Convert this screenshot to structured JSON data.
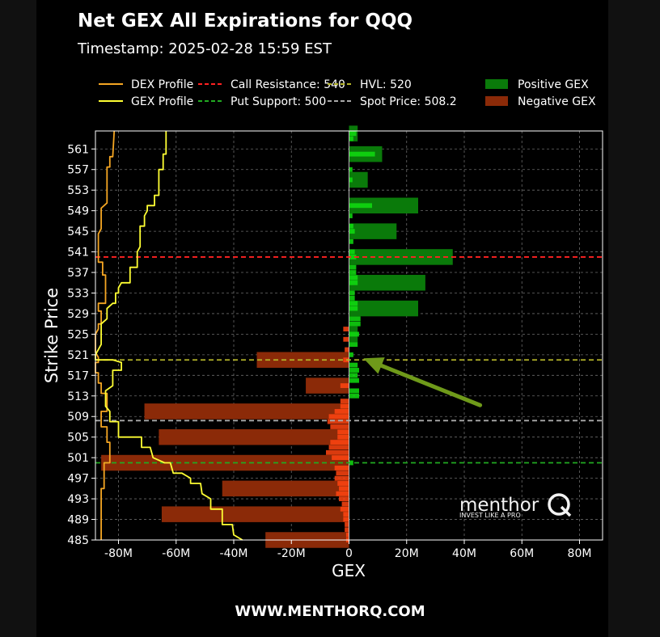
{
  "header": {
    "title": "Net GEX All Expirations for QQQ",
    "timestamp": "Timestamp: 2025-02-28 15:59 EST"
  },
  "legend": [
    {
      "label": "DEX Profile",
      "kind": "line",
      "color": "#f5a623",
      "dash": false
    },
    {
      "label": "GEX Profile",
      "kind": "line",
      "color": "#ffff33",
      "dash": false
    },
    {
      "label": "Call Resistance: 540",
      "kind": "line",
      "color": "#ff2222",
      "dash": true
    },
    {
      "label": "Put Support: 500",
      "kind": "line",
      "color": "#22aa22",
      "dash": true
    },
    {
      "label": "HVL: 520",
      "kind": "line",
      "color": "#b5b52a",
      "dash": true
    },
    {
      "label": "Spot Price: 508.2",
      "kind": "line",
      "color": "#aaaaaa",
      "dash": true
    },
    {
      "label": "Positive GEX",
      "kind": "patch",
      "color": "#0a7a0a"
    },
    {
      "label": "Negative GEX",
      "kind": "patch",
      "color": "#8b2a08"
    }
  ],
  "watermark": {
    "brand": "menthor",
    "tagline": "INVEST LIKE A PRO"
  },
  "footer": "WWW.MENTHORQ.COM",
  "chart_data": {
    "type": "bar",
    "orientation": "horizontal",
    "xlabel": "GEX",
    "ylabel": "Strike Price",
    "xlim": [
      -88,
      88
    ],
    "ylim": [
      485,
      564.5
    ],
    "x_unit": "M",
    "x_ticks": [
      -80,
      -60,
      -40,
      -20,
      0,
      20,
      40,
      60,
      80
    ],
    "x_tick_labels": [
      "-80M",
      "-60M",
      "-40M",
      "-20M",
      "0",
      "20M",
      "40M",
      "60M",
      "80M"
    ],
    "y_ticks": [
      485,
      489,
      493,
      497,
      501,
      505,
      509,
      513,
      517,
      521,
      525,
      529,
      533,
      537,
      541,
      545,
      549,
      553,
      557,
      561
    ],
    "grid": true,
    "colors": {
      "positive": "#0a7a0a",
      "negative": "#8b2a08",
      "bright_positive": "#11dd11",
      "bright_negative": "#ff4411",
      "arrow": "#6f9a1a"
    },
    "levels": {
      "call_resistance": 540,
      "put_support": 500,
      "hvl": 520,
      "spot": 508.2
    },
    "bars": [
      {
        "strike": 564,
        "value": 3
      },
      {
        "strike": 560,
        "value": 11.5
      },
      {
        "strike": 555,
        "value": 6.5
      },
      {
        "strike": 550,
        "value": 24
      },
      {
        "strike": 545,
        "value": 16.5
      },
      {
        "strike": 540,
        "value": 36
      },
      {
        "strike": 535,
        "value": 26.5
      },
      {
        "strike": 530,
        "value": 24
      },
      {
        "strike": 525,
        "value": 3
      },
      {
        "strike": 520,
        "value": -32
      },
      {
        "strike": 515,
        "value": -15
      },
      {
        "strike": 510,
        "value": -71
      },
      {
        "strike": 505,
        "value": -66
      },
      {
        "strike": 500,
        "value": -86
      },
      {
        "strike": 495,
        "value": -44
      },
      {
        "strike": 490,
        "value": -65
      },
      {
        "strike": 485,
        "value": -29
      }
    ],
    "net_gex_bright": [
      {
        "strike": 564,
        "value": 2.5
      },
      {
        "strike": 563,
        "value": 1.5
      },
      {
        "strike": 560,
        "value": 9
      },
      {
        "strike": 557,
        "value": 1.2
      },
      {
        "strike": 555,
        "value": 1.2
      },
      {
        "strike": 550,
        "value": 8
      },
      {
        "strike": 548,
        "value": 1.2
      },
      {
        "strike": 546,
        "value": 1.5
      },
      {
        "strike": 545,
        "value": 2
      },
      {
        "strike": 543,
        "value": 1.5
      },
      {
        "strike": 541,
        "value": 2
      },
      {
        "strike": 540,
        "value": 2.5
      },
      {
        "strike": 538,
        "value": 2.5
      },
      {
        "strike": 537,
        "value": 2.5
      },
      {
        "strike": 536,
        "value": 3
      },
      {
        "strike": 535,
        "value": 3
      },
      {
        "strike": 533,
        "value": 2
      },
      {
        "strike": 532,
        "value": 2
      },
      {
        "strike": 531,
        "value": 3
      },
      {
        "strike": 530,
        "value": 3
      },
      {
        "strike": 528,
        "value": 4
      },
      {
        "strike": 527,
        "value": 4
      },
      {
        "strike": 526,
        "value": -2
      },
      {
        "strike": 525,
        "value": 3.5
      },
      {
        "strike": 524,
        "value": -2
      },
      {
        "strike": 523,
        "value": 3
      },
      {
        "strike": 522,
        "value": -1.5
      },
      {
        "strike": 521,
        "value": 1.5
      },
      {
        "strike": 520,
        "value": -2
      },
      {
        "strike": 519,
        "value": 3
      },
      {
        "strike": 518,
        "value": 3.5
      },
      {
        "strike": 517,
        "value": 3
      },
      {
        "strike": 516,
        "value": 3.5
      },
      {
        "strike": 515,
        "value": -3
      },
      {
        "strike": 514,
        "value": 3.5
      },
      {
        "strike": 513,
        "value": 3.5
      },
      {
        "strike": 512,
        "value": -3
      },
      {
        "strike": 511,
        "value": -3
      },
      {
        "strike": 510,
        "value": -5
      },
      {
        "strike": 509,
        "value": -7
      },
      {
        "strike": 508,
        "value": -7.5
      },
      {
        "strike": 507,
        "value": -6.5
      },
      {
        "strike": 506,
        "value": -4
      },
      {
        "strike": 505,
        "value": -4
      },
      {
        "strike": 504,
        "value": -6.5
      },
      {
        "strike": 503,
        "value": -7
      },
      {
        "strike": 502,
        "value": -8
      },
      {
        "strike": 501,
        "value": -6
      },
      {
        "strike": 500,
        "value": 1.5
      },
      {
        "strike": 499,
        "value": -5
      },
      {
        "strike": 498,
        "value": -4.5
      },
      {
        "strike": 497,
        "value": -5
      },
      {
        "strike": 496,
        "value": -4
      },
      {
        "strike": 495,
        "value": -3.5
      },
      {
        "strike": 494,
        "value": -4.5
      },
      {
        "strike": 493,
        "value": -3.5
      },
      {
        "strike": 492,
        "value": -2.5
      },
      {
        "strike": 491,
        "value": -3
      },
      {
        "strike": 490,
        "value": -2
      },
      {
        "strike": 489,
        "value": -2
      },
      {
        "strike": 488,
        "value": -1.5
      },
      {
        "strike": 487,
        "value": -1.5
      },
      {
        "strike": 486,
        "value": -1
      },
      {
        "strike": 485,
        "value": -1
      }
    ],
    "series": [
      {
        "name": "DEX Profile",
        "color": "#f5a623",
        "points": [
          [
            -81.5,
            564.5
          ],
          [
            -82,
            559.5
          ],
          [
            -83,
            559.5
          ],
          [
            -83,
            557.5
          ],
          [
            -84,
            557.5
          ],
          [
            -84,
            550.5
          ],
          [
            -86,
            549.5
          ],
          [
            -86,
            545.5
          ],
          [
            -87,
            544.5
          ],
          [
            -87,
            539
          ],
          [
            -85.5,
            539
          ],
          [
            -85.5,
            536.5
          ],
          [
            -84.5,
            536.5
          ],
          [
            -84.5,
            531
          ],
          [
            -87,
            531
          ],
          [
            -87,
            529.5
          ],
          [
            -86,
            529.5
          ],
          [
            -86,
            527
          ],
          [
            -87,
            527
          ],
          [
            -87,
            526
          ],
          [
            -88,
            525
          ],
          [
            -88,
            521.5
          ],
          [
            -87,
            520.5
          ],
          [
            -87,
            519.5
          ],
          [
            -88,
            519.5
          ],
          [
            -88,
            517.5
          ],
          [
            -87,
            517.5
          ],
          [
            -87,
            515.5
          ],
          [
            -86,
            515.5
          ],
          [
            -86,
            513.5
          ],
          [
            -84,
            513.5
          ],
          [
            -84,
            510
          ],
          [
            -86,
            510
          ],
          [
            -86,
            507
          ],
          [
            -84,
            507
          ],
          [
            -84,
            504
          ],
          [
            -83,
            504
          ],
          [
            -83,
            500
          ],
          [
            -85,
            500
          ],
          [
            -85,
            495
          ],
          [
            -86,
            495
          ],
          [
            -86,
            485
          ]
        ]
      },
      {
        "name": "GEX Profile",
        "color": "#ffff33",
        "points": [
          [
            -63.5,
            564.5
          ],
          [
            -63.5,
            560
          ],
          [
            -64.5,
            560
          ],
          [
            -64.5,
            557
          ],
          [
            -66,
            557
          ],
          [
            -66,
            552
          ],
          [
            -67.5,
            552
          ],
          [
            -67.5,
            550
          ],
          [
            -70,
            550
          ],
          [
            -70,
            549
          ],
          [
            -71,
            548
          ],
          [
            -71,
            546
          ],
          [
            -72.5,
            546
          ],
          [
            -72.5,
            542
          ],
          [
            -73.5,
            541
          ],
          [
            -73.5,
            538
          ],
          [
            -76,
            538
          ],
          [
            -76,
            535
          ],
          [
            -79,
            535
          ],
          [
            -80,
            534
          ],
          [
            -80,
            533
          ],
          [
            -81,
            533
          ],
          [
            -81,
            531
          ],
          [
            -82,
            531
          ],
          [
            -84,
            530
          ],
          [
            -84,
            528
          ],
          [
            -86,
            527
          ],
          [
            -86,
            523
          ],
          [
            -88,
            521
          ],
          [
            -88,
            520
          ],
          [
            -82,
            520
          ],
          [
            -79,
            519.5
          ],
          [
            -79,
            518
          ],
          [
            -82,
            518
          ],
          [
            -82,
            515
          ],
          [
            -84.5,
            514
          ],
          [
            -84.5,
            511
          ],
          [
            -83,
            510
          ],
          [
            -83,
            508
          ],
          [
            -80,
            508
          ],
          [
            -80,
            505
          ],
          [
            -72,
            505
          ],
          [
            -72,
            503
          ],
          [
            -69,
            503
          ],
          [
            -68,
            501
          ],
          [
            -64,
            500
          ],
          [
            -62,
            500
          ],
          [
            -61,
            498
          ],
          [
            -58,
            498
          ],
          [
            -55,
            497
          ],
          [
            -55,
            496
          ],
          [
            -51.5,
            496
          ],
          [
            -51,
            494
          ],
          [
            -48,
            493
          ],
          [
            -48,
            491
          ],
          [
            -44,
            491
          ],
          [
            -44,
            488
          ],
          [
            -40.5,
            488
          ],
          [
            -40,
            486
          ],
          [
            -37,
            485
          ]
        ]
      }
    ],
    "annotations": [
      {
        "type": "arrow",
        "from": [
          45.5,
          511.2
        ],
        "to": [
          5,
          520.3
        ]
      }
    ]
  }
}
